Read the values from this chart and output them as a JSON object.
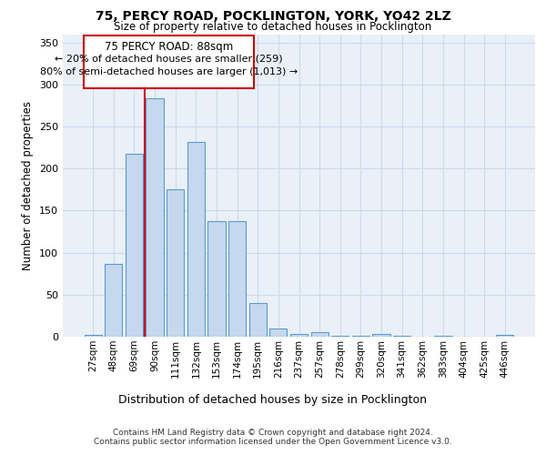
{
  "title1": "75, PERCY ROAD, POCKLINGTON, YORK, YO42 2LZ",
  "title2": "Size of property relative to detached houses in Pocklington",
  "xlabel": "Distribution of detached houses by size in Pocklington",
  "ylabel": "Number of detached properties",
  "categories": [
    "27sqm",
    "48sqm",
    "69sqm",
    "90sqm",
    "111sqm",
    "132sqm",
    "153sqm",
    "174sqm",
    "195sqm",
    "216sqm",
    "237sqm",
    "257sqm",
    "278sqm",
    "299sqm",
    "320sqm",
    "341sqm",
    "362sqm",
    "383sqm",
    "404sqm",
    "425sqm",
    "446sqm"
  ],
  "values": [
    2,
    87,
    218,
    284,
    175,
    232,
    138,
    138,
    40,
    10,
    3,
    5,
    1,
    1,
    3,
    1,
    0,
    1,
    0,
    0,
    2
  ],
  "bar_color": "#c5d8ed",
  "bar_edge_color": "#5b9bd5",
  "property_line_x": 2.5,
  "property_line_label": "75 PERCY ROAD: 88sqm",
  "annotation_line1": "← 20% of detached houses are smaller (259)",
  "annotation_line2": "80% of semi-detached houses are larger (1,013) →",
  "annotation_box_color": "#ffffff",
  "annotation_box_edge_color": "#cc0000",
  "property_line_color": "#cc0000",
  "ylim": [
    0,
    360
  ],
  "yticks": [
    0,
    50,
    100,
    150,
    200,
    250,
    300,
    350
  ],
  "footer1": "Contains HM Land Registry data © Crown copyright and database right 2024.",
  "footer2": "Contains public sector information licensed under the Open Government Licence v3.0.",
  "grid_color": "#d0d8e8",
  "bg_color": "#eaf0f8"
}
